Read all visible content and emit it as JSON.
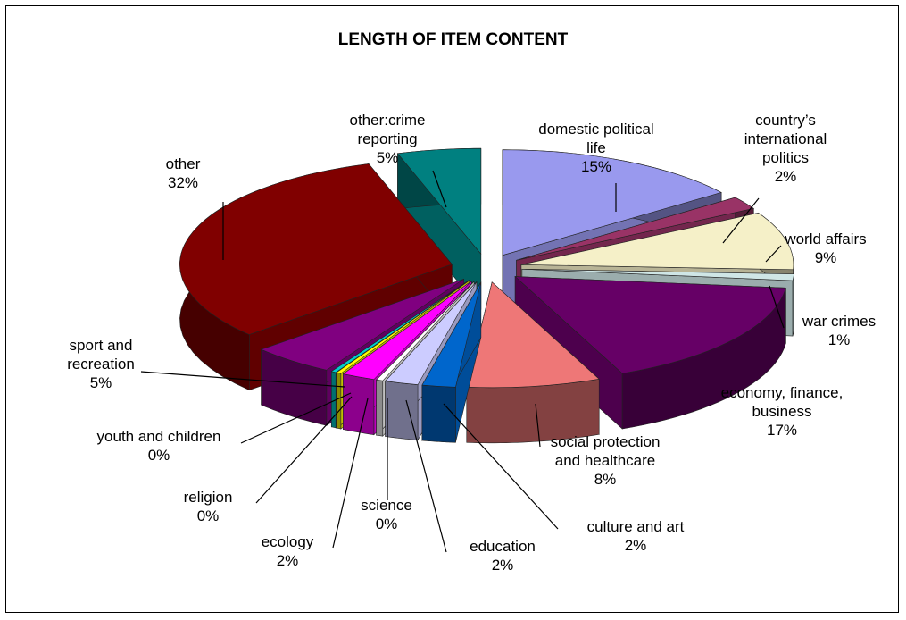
{
  "chart_data": {
    "type": "pie",
    "title": "LENGTH OF ITEM CONTENT",
    "slices": [
      {
        "label": [
          "domestic political",
          "life"
        ],
        "percent_label": "15%",
        "value": 15,
        "color": "#9999ee"
      },
      {
        "label": [
          "country’s",
          "international",
          "politics"
        ],
        "percent_label": "2%",
        "value": 2,
        "color": "#993366"
      },
      {
        "label": [
          "world affairs"
        ],
        "percent_label": "9%",
        "value": 9,
        "color": "#f5f0c8"
      },
      {
        "label": [
          "war crimes"
        ],
        "percent_label": "1%",
        "value": 1,
        "color": "#cfe6e6"
      },
      {
        "label": [
          "economy, finance,",
          "business"
        ],
        "percent_label": "17%",
        "value": 17,
        "color": "#660066"
      },
      {
        "label": [
          "social protection",
          "and healthcare"
        ],
        "percent_label": "8%",
        "value": 8,
        "color": "#ee7777"
      },
      {
        "label": [
          "culture and art"
        ],
        "percent_label": "2%",
        "value": 2,
        "color": "#0066cc"
      },
      {
        "label": [
          "education"
        ],
        "percent_label": "2%",
        "value": 2,
        "color": "#ccccff"
      },
      {
        "label": [
          "science"
        ],
        "percent_label": "0%",
        "value": 0.4,
        "color": "#ffffff"
      },
      {
        "label": [
          "ecology"
        ],
        "percent_label": "2%",
        "value": 2,
        "color": "#ff00ff"
      },
      {
        "label": [
          "religion"
        ],
        "percent_label": "0%",
        "value": 0.3,
        "color": "#ffff00"
      },
      {
        "label": [
          "youth and children"
        ],
        "percent_label": "0%",
        "value": 0.3,
        "color": "#00cccc"
      },
      {
        "label": [
          "sport and",
          "recreation"
        ],
        "percent_label": "5%",
        "value": 5,
        "color": "#800080"
      },
      {
        "label": [
          "other"
        ],
        "percent_label": "32%",
        "value": 32,
        "color": "#800000"
      },
      {
        "label": [
          "other:crime",
          "reporting"
        ],
        "percent_label": "5%",
        "value": 5,
        "color": "#008080"
      }
    ]
  }
}
